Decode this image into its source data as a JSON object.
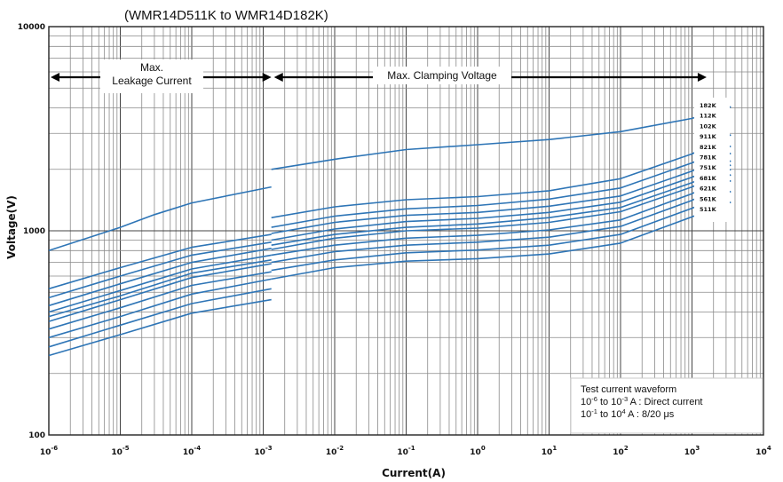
{
  "chart_data": {
    "type": "line",
    "title": "(WMR14D511K to WMR14D182K)",
    "xlabel": "Current(A)",
    "ylabel": "Voltage(V)",
    "x_scale": "log",
    "y_scale": "log",
    "xlim": [
      1e-06,
      10000
    ],
    "ylim": [
      100,
      10000
    ],
    "grid": true,
    "x_ticks": [
      {
        "base": "10",
        "exp": "-6"
      },
      {
        "base": "10",
        "exp": "-5"
      },
      {
        "base": "10",
        "exp": "-4"
      },
      {
        "base": "10",
        "exp": "-3"
      },
      {
        "base": "10",
        "exp": "-2"
      },
      {
        "base": "10",
        "exp": "-1"
      },
      {
        "base": "10",
        "exp": "0"
      },
      {
        "base": "10",
        "exp": "1"
      },
      {
        "base": "10",
        "exp": "2"
      },
      {
        "base": "10",
        "exp": "3"
      },
      {
        "base": "10",
        "exp": "4"
      }
    ],
    "y_ticks": [
      "10000",
      "1000",
      "100"
    ],
    "regions": [
      {
        "label_lines": [
          "Max.",
          "Leakage Current"
        ]
      },
      {
        "label_lines": [
          "Max. Clamping Voltage"
        ]
      }
    ],
    "legend_position": "right",
    "note": {
      "lines": [
        {
          "parts": [
            "Test current waveform"
          ]
        },
        {
          "parts": [
            "10",
            "-6",
            "  to 10",
            "-3",
            " A : Direct current"
          ]
        },
        {
          "parts": [
            "10",
            "-1",
            "  to 10",
            "4",
            "  A : 8/20 μs"
          ]
        }
      ]
    },
    "series_color": "#2e75b6",
    "series": [
      {
        "name": "182K",
        "leakage": [
          [
            1e-06,
            800
          ],
          [
            1e-05,
            1040
          ],
          [
            3e-05,
            1200
          ],
          [
            0.0001,
            1370
          ],
          [
            0.0013,
            1640
          ]
        ],
        "clamping": [
          [
            0.0013,
            2000
          ],
          [
            0.01,
            2240
          ],
          [
            0.1,
            2500
          ],
          [
            1,
            2640
          ],
          [
            10,
            2800
          ],
          [
            100,
            3060
          ],
          [
            1000,
            3550
          ],
          [
            3500,
            4050
          ]
        ]
      },
      {
        "name": "112K",
        "leakage": [
          [
            1e-06,
            520
          ],
          [
            1e-05,
            660
          ],
          [
            0.0001,
            830
          ],
          [
            0.0013,
            960
          ]
        ],
        "clamping": [
          [
            0.0013,
            1160
          ],
          [
            0.01,
            1310
          ],
          [
            0.1,
            1420
          ],
          [
            1,
            1470
          ],
          [
            10,
            1570
          ],
          [
            100,
            1800
          ],
          [
            1000,
            2380
          ],
          [
            3500,
            2950
          ]
        ]
      },
      {
        "name": "102K",
        "leakage": [
          [
            1e-06,
            470
          ],
          [
            1e-05,
            600
          ],
          [
            0.0001,
            760
          ],
          [
            0.0013,
            880
          ]
        ],
        "clamping": [
          [
            0.0013,
            1040
          ],
          [
            0.01,
            1180
          ],
          [
            0.1,
            1280
          ],
          [
            1,
            1330
          ],
          [
            10,
            1430
          ],
          [
            100,
            1620
          ],
          [
            1000,
            2150
          ],
          [
            3500,
            2600
          ]
        ]
      },
      {
        "name": "911K",
        "leakage": [
          [
            1e-06,
            430
          ],
          [
            1e-05,
            550
          ],
          [
            0.0001,
            700
          ],
          [
            0.0013,
            820
          ]
        ],
        "clamping": [
          [
            0.0013,
            970
          ],
          [
            0.01,
            1100
          ],
          [
            0.1,
            1190
          ],
          [
            1,
            1230
          ],
          [
            10,
            1320
          ],
          [
            100,
            1480
          ],
          [
            1000,
            1960
          ],
          [
            3500,
            2400
          ]
        ]
      },
      {
        "name": "821K",
        "leakage": [
          [
            1e-06,
            400
          ],
          [
            1e-05,
            510
          ],
          [
            0.0001,
            650
          ],
          [
            0.0013,
            760
          ]
        ],
        "clamping": [
          [
            0.0013,
            900
          ],
          [
            0.01,
            1020
          ],
          [
            0.1,
            1110
          ],
          [
            1,
            1150
          ],
          [
            10,
            1230
          ],
          [
            100,
            1380
          ],
          [
            1000,
            1830
          ],
          [
            3500,
            2200
          ]
        ]
      },
      {
        "name": "781K",
        "leakage": [
          [
            1e-06,
            380
          ],
          [
            1e-05,
            480
          ],
          [
            0.0001,
            620
          ],
          [
            0.0013,
            720
          ]
        ],
        "clamping": [
          [
            0.0013,
            850
          ],
          [
            0.01,
            960
          ],
          [
            0.1,
            1040
          ],
          [
            1,
            1080
          ],
          [
            10,
            1160
          ],
          [
            100,
            1300
          ],
          [
            1000,
            1720
          ],
          [
            3500,
            2100
          ]
        ]
      },
      {
        "name": "751K",
        "leakage": [
          [
            1e-06,
            360
          ],
          [
            1e-05,
            460
          ],
          [
            0.0001,
            590
          ],
          [
            0.0013,
            690
          ]
        ],
        "clamping": [
          [
            0.0013,
            810
          ],
          [
            0.01,
            920
          ],
          [
            0.1,
            1000
          ],
          [
            1,
            1030
          ],
          [
            10,
            1100
          ],
          [
            100,
            1240
          ],
          [
            1000,
            1640
          ],
          [
            3500,
            2000
          ]
        ]
      },
      {
        "name": "681K",
        "leakage": [
          [
            1e-06,
            330
          ],
          [
            1e-05,
            420
          ],
          [
            0.0001,
            540
          ],
          [
            0.0013,
            630
          ]
        ],
        "clamping": [
          [
            0.0013,
            760
          ],
          [
            0.01,
            850
          ],
          [
            0.1,
            920
          ],
          [
            1,
            950
          ],
          [
            10,
            1010
          ],
          [
            100,
            1130
          ],
          [
            1000,
            1520
          ],
          [
            3500,
            1880
          ]
        ]
      },
      {
        "name": "621K",
        "leakage": [
          [
            1e-06,
            300
          ],
          [
            1e-05,
            380
          ],
          [
            0.0001,
            490
          ],
          [
            0.0013,
            580
          ]
        ],
        "clamping": [
          [
            0.0013,
            700
          ],
          [
            0.01,
            790
          ],
          [
            0.1,
            850
          ],
          [
            1,
            880
          ],
          [
            10,
            930
          ],
          [
            100,
            1050
          ],
          [
            1000,
            1410
          ],
          [
            3500,
            1760
          ]
        ]
      },
      {
        "name": "561K",
        "leakage": [
          [
            1e-06,
            270
          ],
          [
            1e-05,
            345
          ],
          [
            0.0001,
            440
          ],
          [
            0.0013,
            520
          ]
        ],
        "clamping": [
          [
            0.0013,
            640
          ],
          [
            0.01,
            720
          ],
          [
            0.1,
            780
          ],
          [
            1,
            805
          ],
          [
            10,
            850
          ],
          [
            100,
            960
          ],
          [
            1000,
            1290
          ],
          [
            3500,
            1560
          ]
        ]
      },
      {
        "name": "511K",
        "leakage": [
          [
            1e-06,
            245
          ],
          [
            1e-05,
            310
          ],
          [
            0.0001,
            395
          ],
          [
            0.0013,
            460
          ]
        ],
        "clamping": [
          [
            0.0013,
            580
          ],
          [
            0.01,
            660
          ],
          [
            0.1,
            710
          ],
          [
            1,
            730
          ],
          [
            10,
            770
          ],
          [
            100,
            870
          ],
          [
            1000,
            1170
          ],
          [
            3500,
            1380
          ]
        ]
      }
    ]
  }
}
